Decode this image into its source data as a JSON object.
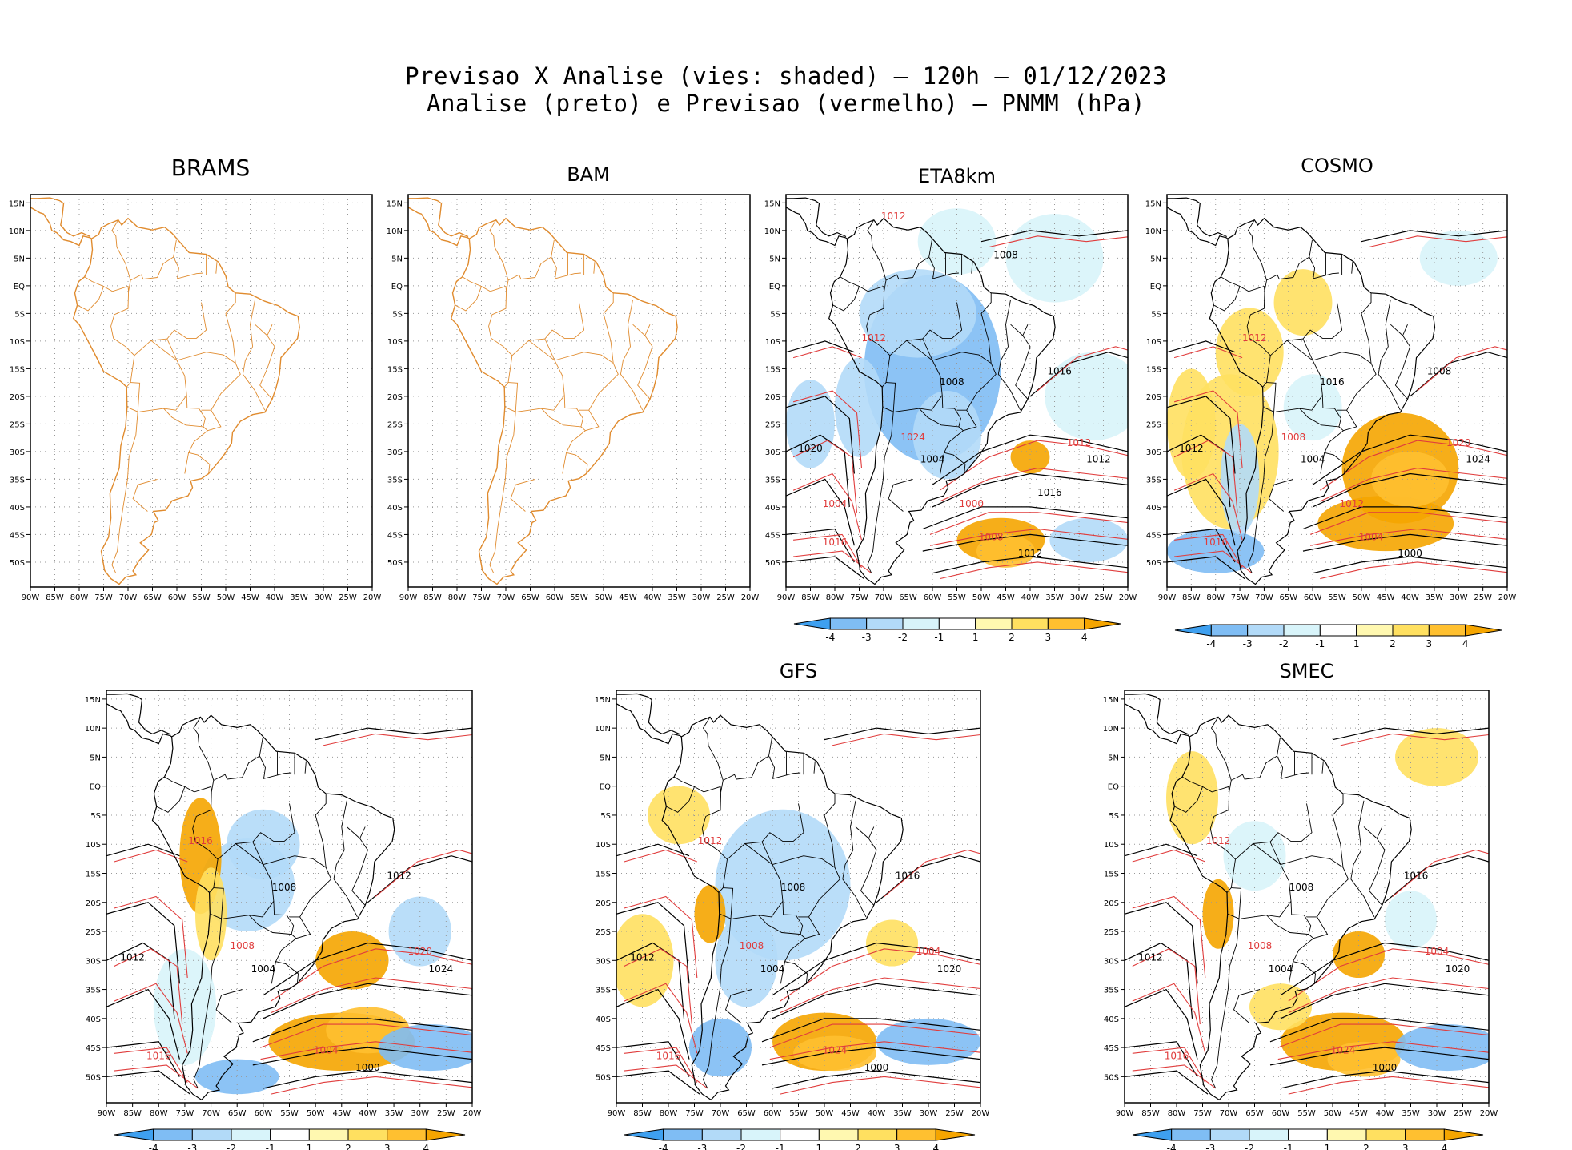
{
  "title": {
    "line1": "Previsao X Analise (vies: shaded) – 120h – 01/12/2023",
    "line2": "Analise (preto) e Previsao (vermelho) – PNMM (hPa)"
  },
  "lat_labels": [
    "15N",
    "10N",
    "5N",
    "EQ",
    "5S",
    "10S",
    "15S",
    "20S",
    "25S",
    "30S",
    "35S",
    "40S",
    "45S",
    "50S"
  ],
  "lon_labels": [
    "90W",
    "85W",
    "80W",
    "75W",
    "70W",
    "65W",
    "60W",
    "55W",
    "50W",
    "45W",
    "40W",
    "35W",
    "30W",
    "25W",
    "20W"
  ],
  "colorbar_labels": [
    "-4",
    "-3",
    "-2",
    "-1",
    "1",
    "2",
    "3",
    "4"
  ],
  "colors": {
    "coast": "#e08b2e",
    "analysis": "#000000",
    "forecast": "#e03c3c",
    "bias_scale": [
      "#3ea0f0",
      "#7fbdf4",
      "#b2daf8",
      "#d8f4fa",
      "#ffffff",
      "#fff8b0",
      "#ffe060",
      "#ffc030",
      "#f5a500"
    ]
  },
  "panels": [
    {
      "name": "BRAMS",
      "has_data": false,
      "has_colorbar": false,
      "pressure_labels": []
    },
    {
      "name": "BAM",
      "has_data": false,
      "has_colorbar": false,
      "pressure_labels": []
    },
    {
      "name": "ETA8km",
      "has_data": true,
      "has_colorbar": true,
      "pressure_labels": [
        "1016",
        "1012",
        "1008",
        "1012",
        "1012",
        "1008",
        "1012",
        "1016",
        "1020",
        "1024",
        "1004",
        "1000",
        "1016",
        "1012",
        "1008",
        "1004"
      ]
    },
    {
      "name": "COSMO",
      "has_data": true,
      "has_colorbar": true,
      "pressure_labels": [
        "1008",
        "1012",
        "1016",
        "1020",
        "1024",
        "1004",
        "1000",
        "1016",
        "1012",
        "1008",
        "1004",
        "1012"
      ]
    },
    {
      "name": "",
      "has_data": true,
      "has_colorbar": true,
      "pressure_labels": [
        "1012",
        "1016",
        "1008",
        "1020",
        "1024",
        "1004",
        "1000",
        "1016",
        "1012",
        "1008",
        "1004"
      ]
    },
    {
      "name": "GFS",
      "has_data": true,
      "has_colorbar": true,
      "pressure_labels": [
        "1016",
        "1012",
        "1008",
        "1004",
        "1020",
        "1024",
        "1000",
        "1016",
        "1012",
        "1008",
        "1004"
      ]
    },
    {
      "name": "SMEC",
      "has_data": true,
      "has_colorbar": true,
      "pressure_labels": [
        "1016",
        "1012",
        "1008",
        "1004",
        "1020",
        "1024",
        "1000",
        "1016",
        "1012",
        "1008",
        "1004"
      ]
    }
  ]
}
